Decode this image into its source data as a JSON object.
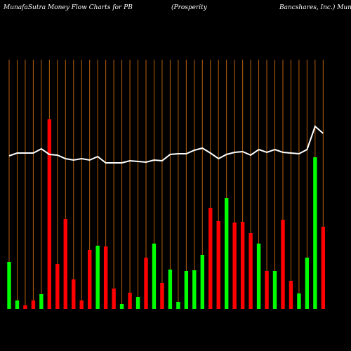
{
  "chart_data": {
    "type": "bar",
    "title_parts": [
      "MunafaSutra  Money Flow  Charts for PB",
      "(Prosperity",
      "Bancshares,  Inc.) Mun"
    ],
    "values": [
      67,
      12,
      5,
      12,
      21,
      270,
      64,
      128,
      42,
      12,
      84,
      90,
      89,
      29,
      7,
      23,
      17,
      73,
      93,
      37,
      56,
      10,
      54,
      55,
      77,
      144,
      125,
      158,
      123,
      124,
      108,
      93,
      54,
      54,
      127,
      40,
      22,
      73,
      216,
      117
    ],
    "colors": [
      "#00ff00",
      "#00ff00",
      "#ff0000",
      "#ff0000",
      "#00ff00",
      "#ff0000",
      "#ff0000",
      "#ff0000",
      "#ff0000",
      "#ff0000",
      "#ff0000",
      "#00ff00",
      "#ff0000",
      "#ff0000",
      "#00ff00",
      "#ff0000",
      "#00ff00",
      "#ff0000",
      "#00ff00",
      "#ff0000",
      "#00ff00",
      "#00ff00",
      "#00ff00",
      "#00ff00",
      "#00ff00",
      "#ff0000",
      "#ff0000",
      "#00ff00",
      "#ff0000",
      "#ff0000",
      "#ff0000",
      "#00ff00",
      "#ff0000",
      "#00ff00",
      "#ff0000",
      "#ff0000",
      "#00ff00",
      "#00ff00",
      "#00ff00",
      "#ff0000"
    ],
    "line": {
      "color": "#ffffff",
      "values": [
        218,
        222,
        222,
        222,
        228,
        220,
        219,
        214,
        212,
        214,
        212,
        217,
        208,
        208,
        208,
        211,
        210,
        209,
        212,
        211,
        220,
        221,
        221,
        226,
        229,
        222,
        214,
        220,
        223,
        224,
        219,
        227,
        223,
        227,
        223,
        222,
        221,
        227,
        260,
        250
      ]
    },
    "ylim": [
      0,
      360
    ],
    "grid_color": "#b8600b"
  }
}
